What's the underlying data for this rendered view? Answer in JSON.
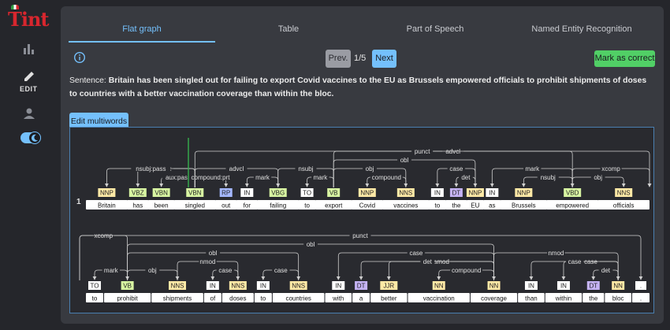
{
  "app": {
    "logo_text": "Tint"
  },
  "sidebar": {
    "edit_label": "EDIT"
  },
  "tabs": [
    {
      "label": "Flat graph",
      "active": true
    },
    {
      "label": "Table",
      "active": false
    },
    {
      "label": "Part of Speech",
      "active": false
    },
    {
      "label": "Named Entity Recognition",
      "active": false
    }
  ],
  "toolbar": {
    "prev_label": "Prev.",
    "page_indicator": "1/5",
    "next_label": "Next",
    "correct_label": "Mark as correct"
  },
  "sentence": {
    "label": "Sentence:",
    "text": "Britain has been singled out for failing to export Covid vaccines to the EU as Brussels empowered officials to prohibit shipments of doses to countries with a better vaccination coverage than within the bloc."
  },
  "multiwords_label": "Edit multiwords",
  "colors": {
    "accent": "#74c0fc",
    "success": "#51cf66",
    "tag_noun": "#ffe9a6",
    "tag_verb": "#d8f5a2",
    "tag_particle": "#a5b8ff",
    "tag_det": "#c5b3f5",
    "tag_other": "#ffffff"
  },
  "graph": {
    "sentence_number": "1",
    "rows": [
      {
        "tokens": [
          {
            "word": "Britain",
            "pos": "NNP"
          },
          {
            "word": "has",
            "pos": "VBZ"
          },
          {
            "word": "been",
            "pos": "VBN"
          },
          {
            "word": "singled",
            "pos": "VBN"
          },
          {
            "word": "out",
            "pos": "RP"
          },
          {
            "word": "for",
            "pos": "IN"
          },
          {
            "word": "failing",
            "pos": "VBG"
          },
          {
            "word": "to",
            "pos": "TO"
          },
          {
            "word": "export",
            "pos": "VB"
          },
          {
            "word": "Covid",
            "pos": "NNP"
          },
          {
            "word": "vaccines",
            "pos": "NNS"
          },
          {
            "word": "to",
            "pos": "IN"
          },
          {
            "word": "the",
            "pos": "DT"
          },
          {
            "word": "EU",
            "pos": "NNP"
          },
          {
            "word": "as",
            "pos": "IN"
          },
          {
            "word": "Brussels",
            "pos": "NNP"
          },
          {
            "word": "empowered",
            "pos": "VBD"
          },
          {
            "word": "officials",
            "pos": "NNS"
          }
        ],
        "arcs": [
          {
            "label": "nsubj:pass",
            "from": 3,
            "to": 0
          },
          {
            "label": "aux",
            "from": 3,
            "to": 1
          },
          {
            "label": "aux:pass",
            "from": 3,
            "to": 2
          },
          {
            "label": "compound:prt",
            "from": 3,
            "to": 4
          },
          {
            "label": "advcl",
            "from": 3,
            "to": 6
          },
          {
            "label": "mark",
            "from": 6,
            "to": 5
          },
          {
            "label": "nsubj",
            "from": 8,
            "to": 6
          },
          {
            "label": "mark",
            "from": 8,
            "to": 7
          },
          {
            "label": "obj",
            "from": 8,
            "to": 10
          },
          {
            "label": "compound",
            "from": 10,
            "to": 9
          },
          {
            "label": "obl",
            "from": 8,
            "to": 13
          },
          {
            "label": "case",
            "from": 13,
            "to": 11
          },
          {
            "label": "det",
            "from": 13,
            "to": 12
          },
          {
            "label": "advcl",
            "from": 8,
            "to": 16
          },
          {
            "label": "mark",
            "from": 16,
            "to": 14
          },
          {
            "label": "nsubj",
            "from": 16,
            "to": 15
          },
          {
            "label": "obj",
            "from": 16,
            "to": 17
          },
          {
            "label": "xcomp",
            "from": 16,
            "to": 18
          },
          {
            "label": "punct",
            "from": 3,
            "to": 18
          }
        ]
      },
      {
        "tokens": [
          {
            "word": "to",
            "pos": "TO"
          },
          {
            "word": "prohibit",
            "pos": "VB"
          },
          {
            "word": "shipments",
            "pos": "NNS"
          },
          {
            "word": "of",
            "pos": "IN"
          },
          {
            "word": "doses",
            "pos": "NNS"
          },
          {
            "word": "to",
            "pos": "IN"
          },
          {
            "word": "countries",
            "pos": "NNS"
          },
          {
            "word": "with",
            "pos": "IN"
          },
          {
            "word": "a",
            "pos": "DT"
          },
          {
            "word": "better",
            "pos": "JJR"
          },
          {
            "word": "vaccination",
            "pos": "NN"
          },
          {
            "word": "coverage",
            "pos": "NN"
          },
          {
            "word": "than",
            "pos": "IN"
          },
          {
            "word": "within",
            "pos": "IN"
          },
          {
            "word": "the",
            "pos": "DT"
          },
          {
            "word": "bloc",
            "pos": "NN"
          },
          {
            "word": ".",
            "pos": "."
          }
        ],
        "arcs": [
          {
            "label": "xcomp",
            "from": -1,
            "to": 1
          },
          {
            "label": "mark",
            "from": 1,
            "to": 0
          },
          {
            "label": "obj",
            "from": 1,
            "to": 2
          },
          {
            "label": "nmod",
            "from": 2,
            "to": 4
          },
          {
            "label": "case",
            "from": 4,
            "to": 3
          },
          {
            "label": "obl",
            "from": 1,
            "to": 6
          },
          {
            "label": "case",
            "from": 6,
            "to": 5
          },
          {
            "label": "case",
            "from": 11,
            "to": 7
          },
          {
            "label": "det",
            "from": 11,
            "to": 8
          },
          {
            "label": "amod",
            "from": 11,
            "to": 9
          },
          {
            "label": "compound",
            "from": 11,
            "to": 10
          },
          {
            "label": "obl",
            "from": 1,
            "to": 11
          },
          {
            "label": "nmod",
            "from": 11,
            "to": 15
          },
          {
            "label": "case",
            "from": 15,
            "to": 12
          },
          {
            "label": "case",
            "from": 15,
            "to": 13
          },
          {
            "label": "det",
            "from": 15,
            "to": 14
          },
          {
            "label": "punct",
            "from": -1,
            "to": 16
          }
        ]
      }
    ]
  }
}
